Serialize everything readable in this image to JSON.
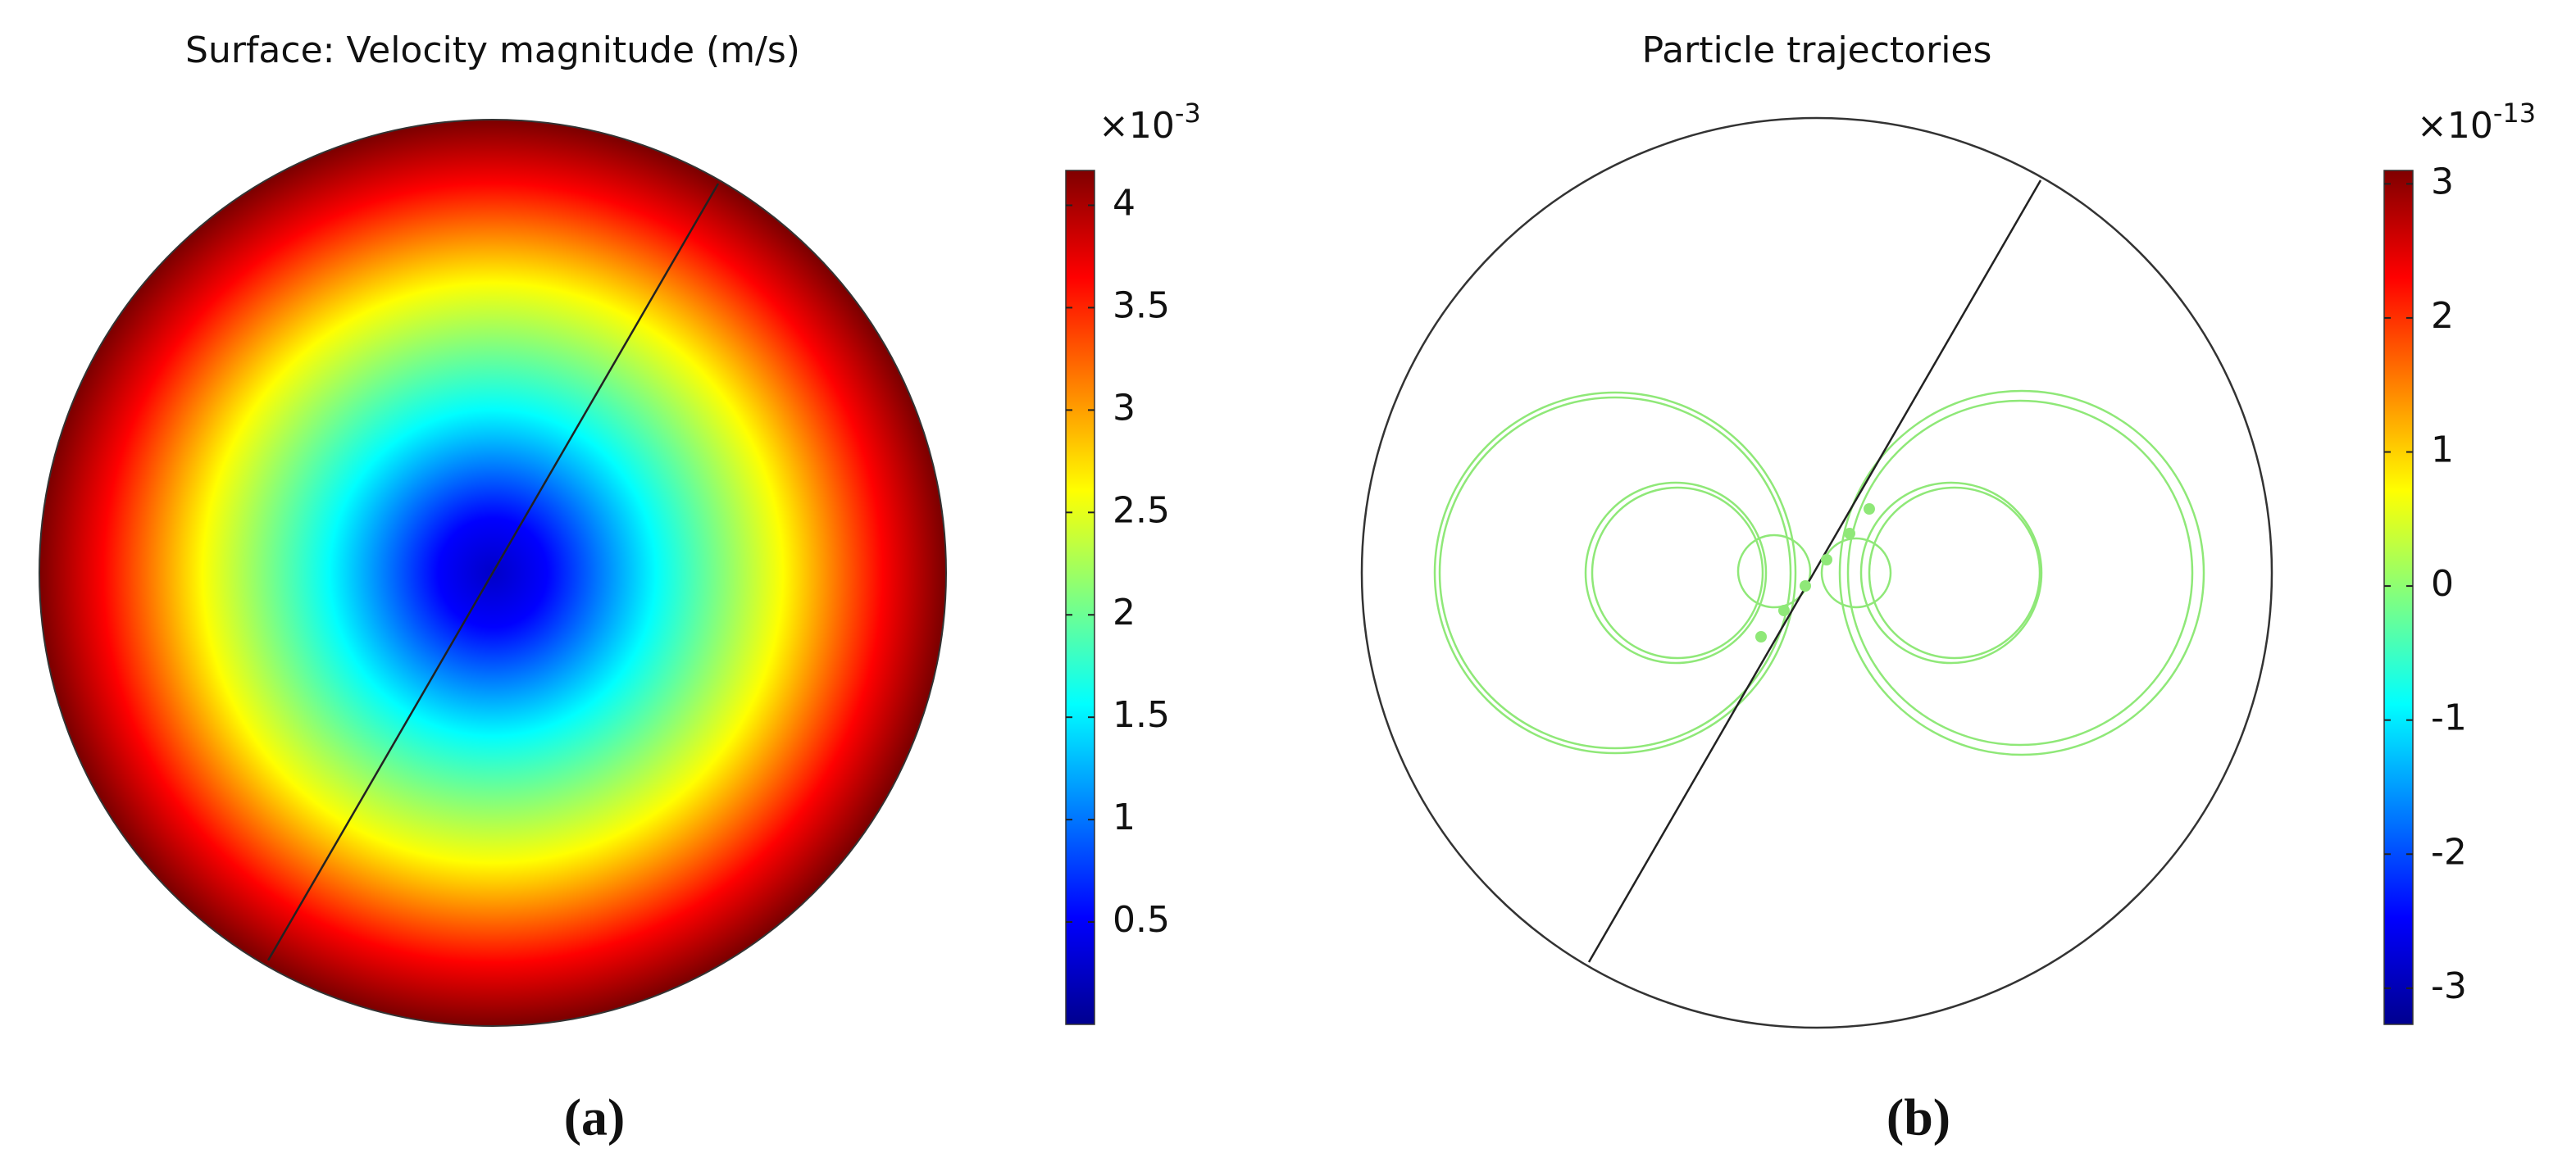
{
  "chart_data": [
    {
      "type": "surface",
      "title": "Surface: Velocity magnitude (m/s)",
      "panel_label": "(a)",
      "colorbar_base": "×10",
      "colorbar_exponent": "-3",
      "clim": [
        0,
        4.17
      ],
      "cticks": [
        0.5,
        1,
        1.5,
        2,
        2.5,
        3,
        3.5,
        4
      ]
    },
    {
      "type": "trajectories",
      "title": "Particle trajectories",
      "panel_label": "(b)",
      "colorbar_base": "×10",
      "colorbar_exponent": "-13",
      "clim": [
        -3.27,
        3.1
      ],
      "cticks": [
        -3,
        -2,
        -1,
        0,
        1,
        2,
        3
      ]
    }
  ]
}
